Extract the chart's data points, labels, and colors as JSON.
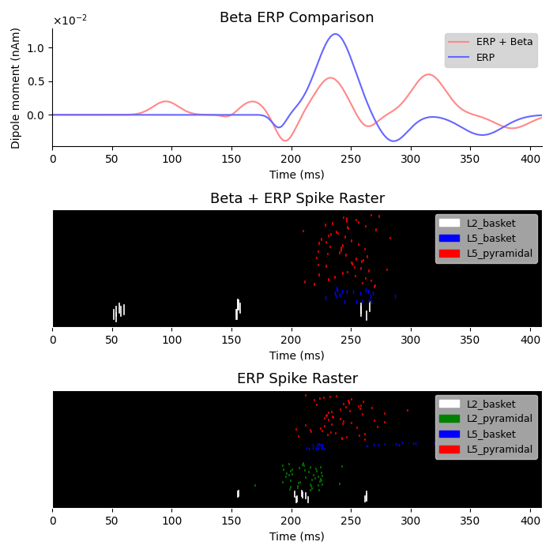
{
  "title_erp": "Beta ERP Comparison",
  "title_beta_raster": "Beta + ERP Spike Raster",
  "title_erp_raster": "ERP Spike Raster",
  "xlabel": "Time (ms)",
  "ylabel_erp": "Dipole moment (nAm)",
  "xlim": [
    0,
    410
  ],
  "xticks": [
    0,
    50,
    100,
    150,
    200,
    250,
    300,
    350,
    400
  ],
  "erp_color": "#6666ff",
  "erp_beta_color": "#ff8888",
  "raster_bg": "black",
  "legend_bg": "#cccccc",
  "colors": {
    "L2_basket": "white",
    "L2_pyramidal": "green",
    "L5_basket": "blue",
    "L5_pyramidal": "red"
  }
}
